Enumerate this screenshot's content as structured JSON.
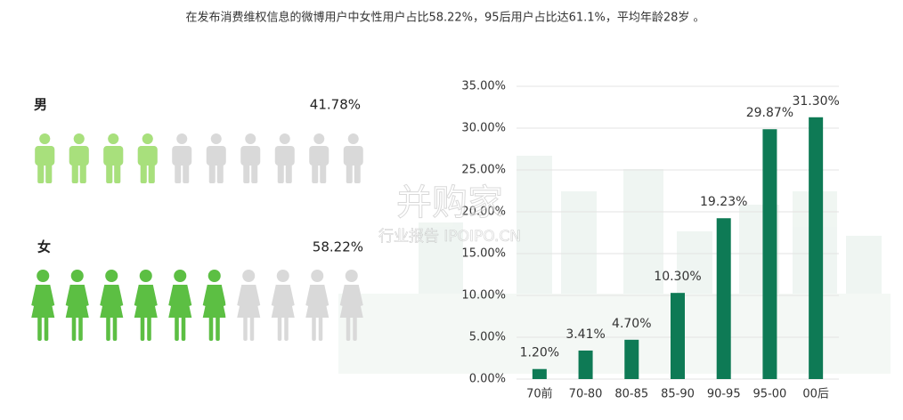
{
  "header": {
    "title": "在发布消费维权信息的微博用户中女性用户占比58.22%，95后用户占比达61.1%，平均年龄28岁 。"
  },
  "watermark": {
    "brand": "并购家",
    "subtitle": "行业报告 IPOIPO.CN"
  },
  "chart_data": [
    {
      "type": "pictograph",
      "series": [
        {
          "name": "男",
          "values": [
            41.78
          ],
          "value_labels": [
            "41.78%"
          ],
          "color": "#a8e07c",
          "icon": "man"
        },
        {
          "name": "女",
          "values": [
            58.22
          ],
          "value_labels": [
            "58.22%"
          ],
          "color": "#5cbf43",
          "icon": "woman"
        }
      ],
      "empty_color": "#d9d9d9"
    },
    {
      "type": "bar",
      "categories": [
        "70前",
        "70-80",
        "80-85",
        "85-90",
        "90-95",
        "95-00",
        "00后"
      ],
      "values": [
        1.2,
        3.41,
        4.7,
        10.3,
        19.23,
        29.87,
        31.3
      ],
      "value_labels": [
        "1.20%",
        "3.41%",
        "4.70%",
        "10.30%",
        "19.23%",
        "29.87%",
        "31.30%"
      ],
      "color": "#0e7a55",
      "ylim": [
        0,
        35
      ],
      "yticks": [
        {
          "value": 0,
          "label": "0.00%"
        },
        {
          "value": 5,
          "label": "5.00%"
        },
        {
          "value": 10,
          "label": "10.00%"
        },
        {
          "value": 15,
          "label": "15.00%"
        },
        {
          "value": 20,
          "label": "20.00%"
        },
        {
          "value": 25,
          "label": "25.00%"
        },
        {
          "value": 30,
          "label": "30.00%"
        },
        {
          "value": 35,
          "label": "35.00%"
        }
      ],
      "grid": true
    }
  ]
}
